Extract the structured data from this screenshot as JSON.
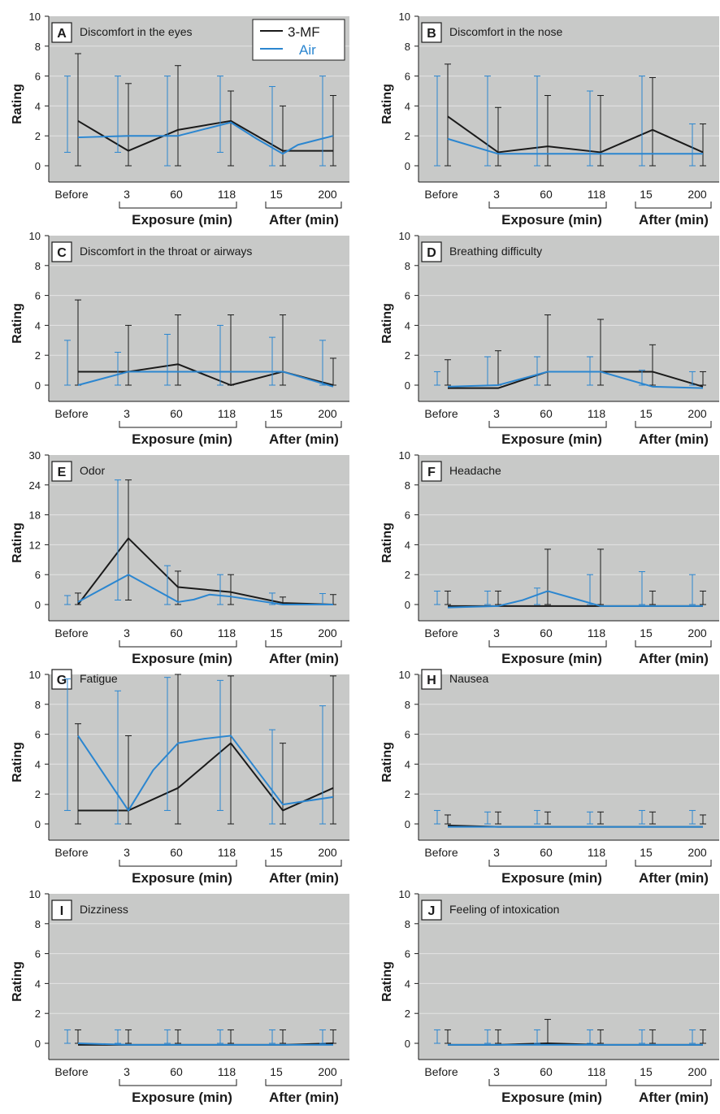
{
  "legend": {
    "entries": [
      {
        "label": "3-MF",
        "color": "#1a1a1a"
      },
      {
        "label": "Air",
        "color": "#2b86d0"
      }
    ]
  },
  "colors": {
    "plot_bg": "#c8c9c8",
    "grid": "#e3e3e3",
    "mf": "#1a1a1a",
    "air": "#2b86d0"
  },
  "axis_text": {
    "ylabel": "Rating",
    "x_ticks": [
      "Before",
      "3",
      "60",
      "118",
      "15",
      "200"
    ],
    "exposure_label": "Exposure (min)",
    "after_label": "After (min)"
  },
  "chart_data": [
    {
      "panel": "A",
      "title": "Discomfort in the eyes",
      "type": "line",
      "ylim": [
        0,
        10
      ],
      "yticks": [
        0,
        2,
        4,
        6,
        8,
        10
      ],
      "series": [
        {
          "name": "3-MF",
          "x": [
            0,
            1,
            2,
            3,
            4,
            5
          ],
          "values": [
            3.0,
            1.0,
            2.4,
            3.0,
            1.0,
            1.0
          ],
          "err_low": [
            0,
            0,
            0,
            0,
            0,
            0
          ],
          "err_high": [
            7.5,
            5.5,
            6.7,
            5.0,
            4.0,
            4.7
          ]
        },
        {
          "name": "Air",
          "x": [
            0,
            1,
            2,
            3,
            3.5,
            4,
            4.3,
            5
          ],
          "values": [
            1.9,
            2.0,
            2.0,
            2.9,
            1.8,
            0.8,
            1.4,
            2.0
          ],
          "err_low": [
            0.9,
            0.9,
            0,
            0.9,
            null,
            0,
            null,
            0
          ],
          "err_high": [
            6.0,
            6.0,
            6.0,
            6.0,
            null,
            5.3,
            null,
            6.0
          ]
        }
      ]
    },
    {
      "panel": "B",
      "title": "Discomfort in the nose",
      "type": "line",
      "ylim": [
        0,
        10
      ],
      "yticks": [
        0,
        2,
        4,
        6,
        8,
        10
      ],
      "series": [
        {
          "name": "3-MF",
          "x": [
            0,
            1,
            2,
            3,
            4,
            5
          ],
          "values": [
            3.3,
            0.9,
            1.3,
            0.9,
            2.4,
            0.9
          ],
          "err_low": [
            0,
            0,
            0,
            0,
            0,
            0
          ],
          "err_high": [
            6.8,
            3.9,
            4.7,
            4.7,
            5.9,
            2.8
          ]
        },
        {
          "name": "Air",
          "x": [
            0,
            1,
            2,
            3,
            4,
            5
          ],
          "values": [
            1.8,
            0.8,
            0.8,
            0.8,
            0.8,
            0.8
          ],
          "err_low": [
            0,
            0,
            0,
            0,
            0,
            0
          ],
          "err_high": [
            6.0,
            6.0,
            6.0,
            5.0,
            6.0,
            2.8
          ]
        }
      ]
    },
    {
      "panel": "C",
      "title": "Discomfort in the throat or airways",
      "type": "line",
      "ylim": [
        0,
        10
      ],
      "yticks": [
        0,
        2,
        4,
        6,
        8,
        10
      ],
      "series": [
        {
          "name": "3-MF",
          "x": [
            0,
            1,
            2,
            3,
            4,
            5
          ],
          "values": [
            0.9,
            0.9,
            1.4,
            0.0,
            0.9,
            0.0
          ],
          "err_low": [
            0,
            0,
            0,
            0,
            0,
            0
          ],
          "err_high": [
            5.7,
            4.0,
            4.7,
            4.7,
            4.7,
            1.8
          ]
        },
        {
          "name": "Air",
          "x": [
            0,
            1,
            2,
            3,
            4,
            5
          ],
          "values": [
            0.0,
            0.9,
            0.9,
            0.9,
            0.9,
            -0.1
          ],
          "err_low": [
            0,
            0,
            0,
            0,
            0,
            0
          ],
          "err_high": [
            3.0,
            2.2,
            3.4,
            4.0,
            3.2,
            3.0
          ]
        }
      ]
    },
    {
      "panel": "D",
      "title": "Breathing difficulty",
      "type": "line",
      "ylim": [
        0,
        10
      ],
      "yticks": [
        0,
        2,
        4,
        6,
        8,
        10
      ],
      "series": [
        {
          "name": "3-MF",
          "x": [
            0,
            1,
            2,
            3,
            4,
            5
          ],
          "values": [
            -0.2,
            -0.2,
            0.9,
            0.9,
            0.9,
            -0.1
          ],
          "err_low": [
            0,
            0,
            0,
            0,
            0,
            0
          ],
          "err_high": [
            1.7,
            2.3,
            4.7,
            4.4,
            2.7,
            0.9
          ]
        },
        {
          "name": "Air",
          "x": [
            0,
            1,
            2,
            3,
            4,
            5
          ],
          "values": [
            -0.1,
            0.0,
            0.9,
            0.9,
            -0.1,
            -0.2
          ],
          "err_low": [
            0,
            0,
            0,
            0,
            0,
            0
          ],
          "err_high": [
            0.9,
            1.9,
            1.9,
            1.9,
            1.0,
            0.9
          ]
        }
      ]
    },
    {
      "panel": "E",
      "title": "Odor",
      "type": "line",
      "ylim": [
        0,
        30
      ],
      "yticks": [
        0,
        6,
        12,
        18,
        24,
        30
      ],
      "series": [
        {
          "name": "3-MF",
          "x": [
            0,
            1,
            2,
            3,
            4,
            5
          ],
          "values": [
            0.0,
            13.3,
            3.5,
            2.5,
            0.3,
            0.0
          ],
          "err_low": [
            0,
            0.9,
            0,
            0,
            0,
            0
          ],
          "err_high": [
            2.3,
            25.0,
            6.7,
            6.0,
            1.5,
            2.0
          ]
        },
        {
          "name": "Air",
          "x": [
            0,
            1,
            2,
            2.3,
            2.6,
            3,
            4,
            5
          ],
          "values": [
            0.5,
            6.0,
            0.5,
            1.0,
            2.0,
            1.6,
            0.0,
            0.0
          ],
          "err_low": [
            0,
            0.9,
            0,
            null,
            null,
            0,
            0,
            0
          ],
          "err_high": [
            1.8,
            25.0,
            7.8,
            null,
            null,
            6.0,
            2.3,
            2.2
          ]
        }
      ]
    },
    {
      "panel": "F",
      "title": "Headache",
      "type": "line",
      "ylim": [
        0,
        10
      ],
      "yticks": [
        0,
        2,
        4,
        6,
        8,
        10
      ],
      "series": [
        {
          "name": "3-MF",
          "x": [
            0,
            1,
            2,
            3,
            4,
            5
          ],
          "values": [
            -0.1,
            -0.1,
            -0.1,
            -0.1,
            -0.1,
            -0.1
          ],
          "err_low": [
            0,
            0,
            0,
            0,
            0,
            0
          ],
          "err_high": [
            0.9,
            0.9,
            3.7,
            3.7,
            0.9,
            0.9
          ]
        },
        {
          "name": "Air",
          "x": [
            0,
            1,
            1.5,
            2,
            2.5,
            3,
            4,
            5
          ],
          "values": [
            -0.2,
            -0.1,
            0.3,
            0.9,
            0.4,
            -0.1,
            -0.1,
            -0.1
          ],
          "err_low": [
            0,
            0,
            null,
            0,
            null,
            0,
            0,
            0
          ],
          "err_high": [
            0.9,
            0.9,
            null,
            1.1,
            null,
            2.0,
            2.2,
            2.0
          ]
        }
      ]
    },
    {
      "panel": "G",
      "title": "Fatigue",
      "type": "line",
      "ylim": [
        0,
        10
      ],
      "yticks": [
        0,
        2,
        4,
        6,
        8,
        10
      ],
      "series": [
        {
          "name": "3-MF",
          "x": [
            0,
            1,
            2,
            3,
            4,
            5
          ],
          "values": [
            0.9,
            0.9,
            2.4,
            5.4,
            0.9,
            2.4
          ],
          "err_low": [
            0,
            0,
            0,
            0,
            0,
            0
          ],
          "err_high": [
            6.7,
            5.9,
            10.0,
            9.9,
            5.4,
            9.9
          ]
        },
        {
          "name": "Air",
          "x": [
            0,
            1,
            1.5,
            2,
            2.5,
            3,
            4,
            5
          ],
          "values": [
            5.9,
            0.9,
            3.6,
            5.4,
            5.7,
            5.9,
            1.3,
            1.8
          ],
          "err_low": [
            0.9,
            0,
            null,
            0.9,
            null,
            0.9,
            0,
            0
          ],
          "err_high": [
            9.7,
            8.9,
            null,
            9.8,
            null,
            9.6,
            6.3,
            7.9
          ]
        }
      ]
    },
    {
      "panel": "H",
      "title": "Nausea",
      "type": "line",
      "ylim": [
        0,
        10
      ],
      "yticks": [
        0,
        2,
        4,
        6,
        8,
        10
      ],
      "series": [
        {
          "name": "3-MF",
          "x": [
            0,
            1,
            2,
            3,
            4,
            5
          ],
          "values": [
            -0.1,
            -0.2,
            -0.2,
            -0.2,
            -0.2,
            -0.2
          ],
          "err_low": [
            0,
            0,
            0,
            0,
            0,
            0
          ],
          "err_high": [
            0.6,
            0.8,
            0.8,
            0.8,
            0.8,
            0.6
          ]
        },
        {
          "name": "Air",
          "x": [
            0,
            1,
            2,
            3,
            4,
            5
          ],
          "values": [
            -0.2,
            -0.2,
            -0.2,
            -0.2,
            -0.2,
            -0.2
          ],
          "err_low": [
            0,
            0,
            0,
            0,
            0,
            0
          ],
          "err_high": [
            0.9,
            0.8,
            0.9,
            0.8,
            0.9,
            0.9
          ]
        }
      ]
    },
    {
      "panel": "I",
      "title": "Dizziness",
      "type": "line",
      "ylim": [
        0,
        10
      ],
      "yticks": [
        0,
        2,
        4,
        6,
        8,
        10
      ],
      "series": [
        {
          "name": "3-MF",
          "x": [
            0,
            1,
            2,
            3,
            4,
            5
          ],
          "values": [
            -0.1,
            -0.1,
            -0.1,
            -0.1,
            -0.1,
            0.0
          ],
          "err_low": [
            0,
            0,
            0,
            0,
            0,
            0
          ],
          "err_high": [
            0.9,
            0.9,
            0.9,
            0.9,
            0.9,
            0.9
          ]
        },
        {
          "name": "Air",
          "x": [
            0,
            1,
            2,
            3,
            4,
            5
          ],
          "values": [
            0.0,
            -0.1,
            -0.1,
            -0.1,
            -0.1,
            -0.1
          ],
          "err_low": [
            0,
            0,
            0,
            0,
            0,
            0
          ],
          "err_high": [
            0.9,
            0.9,
            0.9,
            0.9,
            0.9,
            0.9
          ]
        }
      ]
    },
    {
      "panel": "J",
      "title": "Feeling of intoxication",
      "type": "line",
      "ylim": [
        0,
        10
      ],
      "yticks": [
        0,
        2,
        4,
        6,
        8,
        10
      ],
      "series": [
        {
          "name": "3-MF",
          "x": [
            0,
            1,
            2,
            3,
            4,
            5
          ],
          "values": [
            -0.1,
            -0.1,
            0.0,
            -0.1,
            -0.1,
            -0.1
          ],
          "err_low": [
            0,
            0,
            0,
            0,
            0,
            0
          ],
          "err_high": [
            0.9,
            0.9,
            1.6,
            0.9,
            0.9,
            0.9
          ]
        },
        {
          "name": "Air",
          "x": [
            0,
            1,
            2,
            3,
            4,
            5
          ],
          "values": [
            -0.1,
            -0.1,
            -0.1,
            -0.1,
            -0.1,
            -0.1
          ],
          "err_low": [
            0,
            0,
            0,
            0,
            0,
            0
          ],
          "err_high": [
            0.9,
            0.9,
            0.9,
            0.9,
            0.9,
            0.9
          ]
        }
      ]
    }
  ]
}
